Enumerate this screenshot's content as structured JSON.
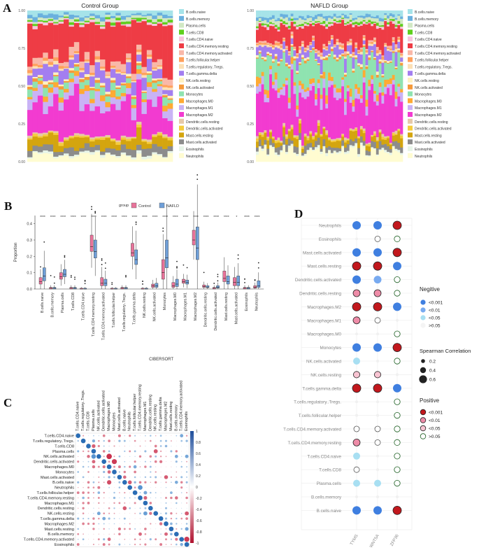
{
  "panel_letters": {
    "a": "A",
    "b": "B",
    "c": "C",
    "d": "D"
  },
  "cell_types": [
    "B.cells.naive",
    "B.cells.memory",
    "Plasma.cells",
    "T.cells.CD8",
    "T.cells.CD4.naive",
    "T.cells.CD4.memory.resting",
    "T.cells.CD4.memory.activated",
    "T.cells.follicular.helper",
    "T.cells.regulatory..Tregs.",
    "T.cells.gamma.delta",
    "NK.cells.resting",
    "NK.cells.activated",
    "Monocytes",
    "Macrophages.M0",
    "Macrophages.M1",
    "Macrophages.M2",
    "Dendritic.cells.resting",
    "Dendritic.cells.activated",
    "Mast.cells.resting",
    "Mast.cells.activated",
    "Eosinophils",
    "Neutrophils"
  ],
  "legend_a_labels": [
    "B.cells.naive",
    "B.cells.memory",
    "Plasma.cells",
    "T.cells.CD8",
    "T.cells.CD4.naive",
    "T.cells.CD4.memory.resting",
    "T.cells.CD4.memory.activated",
    "T.cells.follicular.helper",
    "T.cells.regulatory..Tregs.",
    "T.cells.gamma.delta",
    "NK.cells.resting",
    "NK.cells.activated",
    "Monocytes",
    "Macrophages.M0",
    "Macrophages.M1",
    "Macrophages.M2",
    "Dendritic.cells.resting",
    "Dendritic.cells.activated",
    "Mast.cells.resting",
    "Mast.cells.activated",
    "Eosinophils",
    "Neutrophils"
  ],
  "palette": [
    "#a6e3e9",
    "#6ab0de",
    "#d1e8c4",
    "#5fcf1d",
    "#f7c6de",
    "#ee3c45",
    "#f9b8a8",
    "#ffa15c",
    "#fce0b5",
    "#a37ef0",
    "#fff2c2",
    "#f59a3b",
    "#8fe3b0",
    "#ffaa33",
    "#c9b3f5",
    "#f23bd0",
    "#e6c9a8",
    "#f5cc3d",
    "#d4a50f",
    "#8c8c8c",
    "#e8f5e9",
    "#fffcd1"
  ],
  "panel_a": {
    "titles": [
      "Control Group",
      "NAFLD Group"
    ],
    "y_ticks": [
      "0.00",
      "0.25",
      "0.50",
      "0.75",
      "1.00"
    ]
  },
  "panel_b": {
    "legend_title": "group",
    "legend_items": [
      "Control",
      "NAFLD"
    ],
    "group_colors": [
      "#e8739a",
      "#6f9fd8"
    ],
    "ylabel": "Proportion",
    "xlabel": "CIBERSORT",
    "y_ticks": [
      "0.0",
      "0.1",
      "0.2",
      "0.3",
      "0.4"
    ],
    "categories": [
      "B.cells.naive",
      "B.cells.memory",
      "Plasma.cells",
      "T.cells.CD8",
      "T.cells.CD4.naive",
      "T.cells.CD4.memory.resting",
      "T.cells.CD4.memory.activated",
      "T.cells.follicular.helper",
      "T.cells.regulatory..Tregs.",
      "T.cells.gamma.delta",
      "NK.cells.resting",
      "NK.cells.activated",
      "Monocytes",
      "Macrophages.M0",
      "Macrophages.M1",
      "Macrophages.M2",
      "Dendritic.cells.resting",
      "Dendritic.cells.activated",
      "Mast.cells.resting",
      "Mast.cells.activated",
      "Eosinophils",
      "Neutrophils"
    ],
    "significance": [
      "****",
      "****",
      "****",
      "****",
      "****",
      "****",
      "****",
      "****",
      "****",
      "****",
      "****",
      "****",
      "****",
      "****",
      "****",
      "****",
      "****",
      "****",
      "****",
      "*",
      "****",
      "****"
    ]
  },
  "panel_c": {
    "rows": [
      "T.cells.CD4.naive",
      "T.cells.regulatory..Tregs.",
      "T.cells.CD8",
      "Plasma.cells",
      "NK.cells.activated",
      "Dendritic.cells.activated",
      "Macrophages.M0",
      "Monocytes",
      "Mast.cells.activated",
      "B.cells.naive",
      "Neutrophils",
      "T.cells.follicular.helper",
      "T.cells.CD4.memory.resting",
      "Macrophages.M1",
      "Dendritic.cells.resting",
      "NK.cells.resting",
      "T.cells.gamma.delta",
      "Macrophages.M2",
      "Mast.cells.resting",
      "B.cells.memory",
      "T.cells.CD4.memory.activated",
      "Eosinophils"
    ],
    "colorbar_ticks": [
      "1",
      "0.8",
      "0.6",
      "0.4",
      "0.2",
      "0",
      "-0.2",
      "-0.4",
      "-0.6",
      "-0.8",
      "-1"
    ]
  },
  "panel_d": {
    "rows": [
      "Neutrophils",
      "Eosinophils",
      "Mast.cells.activated",
      "Mast.cells.resting",
      "Dendritic.cells.activated",
      "Dendritic.cells.resting",
      "Macrophages.M2",
      "Macrophages.M1",
      "Macrophages.M0",
      "Monocytes",
      "NK.cells.activated",
      "NK.cells.resting",
      "T.cells.gamma.delta",
      "T.cells.regulatory..Tregs.",
      "T.cells.follicular.helper",
      "T.cells.CD4.memory.activated",
      "T.cells.CD4.memory.resting",
      "T.cells.CD4.naive",
      "T.cells.CD8",
      "Plasma.cells",
      "B.cells.memory",
      "B.cells.naive"
    ],
    "genes": [
      "TYMS",
      "WNT5A",
      "ZFP36"
    ],
    "legend_negative_title": "Negitive",
    "legend_negative": [
      "<0.001",
      "<0.01",
      "<0.05",
      ">0.05"
    ],
    "legend_size_title": "Spearman Correlation",
    "legend_size": [
      "0.2",
      "0.4",
      "0.6"
    ],
    "legend_positive_title": "Positive",
    "legend_positive": [
      "<0.001",
      "<0.01",
      "<0.05",
      ">0.05"
    ],
    "cells": [
      [
        "n1",
        "n1",
        "p1"
      ],
      [
        "e",
        "n4",
        "p4"
      ],
      [
        "n1",
        "n1",
        "p1"
      ],
      [
        "p1",
        "p1",
        "n1"
      ],
      [
        "n1",
        "n2",
        "p4"
      ],
      [
        "p2",
        "p2",
        "p4"
      ],
      [
        "p1",
        "p1",
        "n1"
      ],
      [
        "p2",
        "n4",
        "e"
      ],
      [
        "e",
        "e",
        "p4"
      ],
      [
        "n1",
        "n1",
        "p1"
      ],
      [
        "n3",
        "e",
        "p4"
      ],
      [
        "p3",
        "p3",
        "e"
      ],
      [
        "p1",
        "p1",
        "n1"
      ],
      [
        "e",
        "e",
        "p4"
      ],
      [
        "e",
        "e",
        "p4"
      ],
      [
        "n4",
        "n4",
        "p4"
      ],
      [
        "p2",
        "n4",
        "p4"
      ],
      [
        "n3",
        "e",
        "p4"
      ],
      [
        "n4",
        "e",
        "p4"
      ],
      [
        "n3",
        "n3",
        "p4"
      ],
      [
        "e",
        "e",
        "e"
      ],
      [
        "n1",
        "n1",
        "p1"
      ]
    ]
  }
}
